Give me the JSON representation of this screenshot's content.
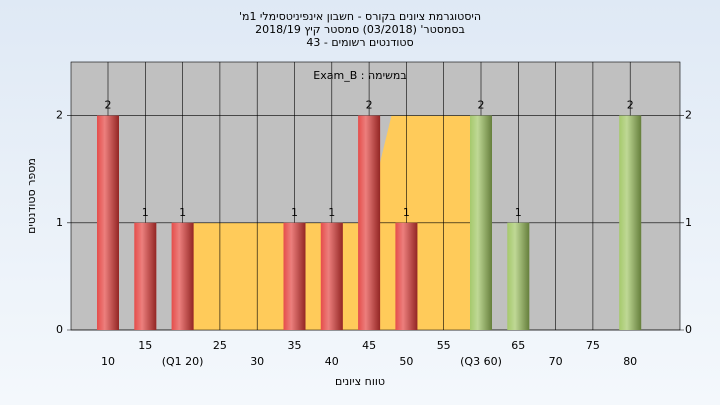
{
  "chart_data": {
    "type": "bar",
    "title_lines": [
      "היסטוגרמת ציונים בקורס - חשבון אינפיניטסימלי 1מ'",
      "בסמסטר' (03/2018) סמסטר קיץ 2018/19",
      "סטודנטים רשומים - 43"
    ],
    "annotation": "במשימה : Exam_B",
    "xlabel": "טווח ציונים",
    "ylabel": "מספר סטודנטים",
    "categories": [
      "10",
      "15",
      "(Q1 20)",
      "25",
      "30",
      "35",
      "40",
      "45",
      "50",
      "55",
      "(Q3 60)",
      "65",
      "70",
      "75",
      "80"
    ],
    "values": [
      2,
      1,
      1,
      0,
      0,
      1,
      1,
      2,
      1,
      0,
      2,
      1,
      0,
      0,
      2
    ],
    "colors": [
      "#e23a37",
      "#e23a37",
      "#e23a37",
      "#e23a37",
      "#e23a37",
      "#e23a37",
      "#e23a37",
      "#e23a37",
      "#e23a37",
      "#e23a37",
      "#9cc35c",
      "#9cc35c",
      "#9cc35c",
      "#9cc35c",
      "#9cc35c"
    ],
    "quartile_area": {
      "x": [
        2,
        6.9,
        7.6,
        10
      ],
      "values": [
        1,
        1,
        2,
        2
      ],
      "color": "#ffcb5a"
    },
    "ylim": [
      0,
      2.5
    ],
    "yticks": [
      0,
      1,
      2
    ],
    "grid": true
  }
}
